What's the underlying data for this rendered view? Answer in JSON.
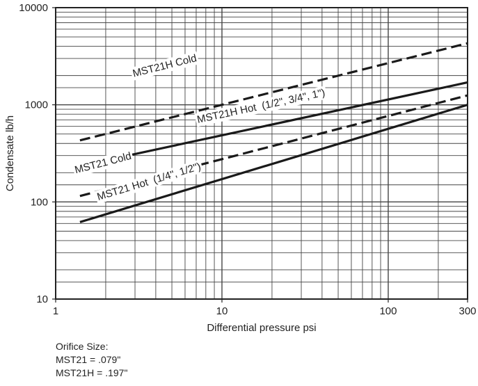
{
  "chart_data": {
    "type": "line",
    "xlabel": "Differential pressure psi",
    "ylabel": "Condensate lb/h",
    "x_scale": "log",
    "y_scale": "log",
    "xlim": [
      1,
      300
    ],
    "ylim": [
      10,
      10000
    ],
    "x_ticks": [
      "1",
      "10",
      "100",
      "300"
    ],
    "y_ticks": [
      "10",
      "100",
      "1000",
      "10000"
    ],
    "grid": true,
    "series": [
      {
        "name": "MST21H Cold",
        "style": "dashed",
        "x": [
          1.4,
          300
        ],
        "y": [
          430,
          4300
        ]
      },
      {
        "name": "MST21H Hot  (1/2\", 3/4\", 1\")",
        "style": "solid",
        "x": [
          1.4,
          300
        ],
        "y": [
          235,
          1700
        ]
      },
      {
        "name": "MST21 Cold",
        "style": "dashed",
        "x": [
          1.4,
          300
        ],
        "y": [
          115,
          1250
        ]
      },
      {
        "name": "MST21 Hot  (1/4\", 1/2\")",
        "style": "solid",
        "x": [
          1.4,
          300
        ],
        "y": [
          62,
          1000
        ]
      }
    ]
  },
  "notes": {
    "title": "Orifice Size:",
    "line1": "MST21 = .079\"",
    "line2": "MST21H = .197\""
  }
}
